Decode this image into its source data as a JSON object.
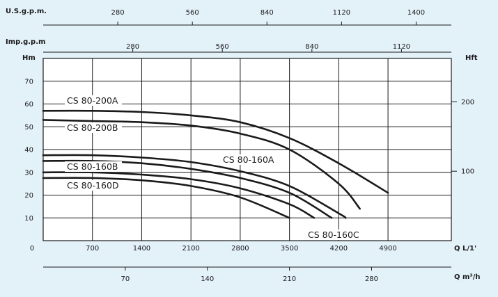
{
  "chart_data": {
    "type": "line",
    "title": "",
    "grid": true,
    "x_primary": {
      "unit": "Q L/1'",
      "ticks": [
        0,
        700,
        1400,
        2100,
        2800,
        3500,
        4200,
        4900
      ],
      "range": [
        0,
        5800
      ]
    },
    "x_secondary_axes": [
      {
        "unit": "U.S.g.p.m.",
        "ticks": [
          "280",
          "560",
          "840",
          "1120",
          "1400"
        ]
      },
      {
        "unit": "Imp.g.p.m",
        "ticks": [
          "280",
          "560",
          "840",
          "1120"
        ]
      },
      {
        "unit": "Q m³/h",
        "ticks": [
          "70",
          "140",
          "210",
          "280"
        ]
      }
    ],
    "y_primary": {
      "unit": "Hm",
      "ticks": [
        0,
        10,
        20,
        30,
        40,
        50,
        60,
        70
      ],
      "range": [
        0,
        80
      ]
    },
    "y_secondary": {
      "unit": "Hft",
      "ticks": [
        "100",
        "200"
      ]
    },
    "series": [
      {
        "name": "CS 80-200A",
        "x": [
          0,
          700,
          1400,
          2100,
          2800,
          3500,
          4200,
          4900
        ],
        "y": [
          57,
          57,
          56.5,
          55,
          52,
          45,
          34,
          21
        ]
      },
      {
        "name": "CS 80-200B",
        "x": [
          0,
          700,
          1400,
          2100,
          2800,
          3500,
          4200,
          4500
        ],
        "y": [
          53,
          52.5,
          52,
          50.5,
          47,
          40,
          25,
          14
        ]
      },
      {
        "name": "CS 80-160A",
        "x": [
          0,
          700,
          1400,
          2100,
          2800,
          3500,
          4200,
          4300
        ],
        "y": [
          37.5,
          37.5,
          36.5,
          34.5,
          30.5,
          24,
          12,
          10
        ]
      },
      {
        "name": "CS 80-160B",
        "x": [
          0,
          700,
          1400,
          2100,
          2800,
          3500,
          4100
        ],
        "y": [
          35,
          35,
          34,
          31.5,
          27.5,
          21,
          10
        ]
      },
      {
        "name": "CS 80-160C",
        "x": [
          0,
          700,
          1400,
          2100,
          2800,
          3500,
          3850
        ],
        "y": [
          30,
          30,
          29,
          27,
          23,
          16,
          10
        ]
      },
      {
        "name": "CS 80-160D",
        "x": [
          0,
          700,
          1400,
          2100,
          2800,
          3500
        ],
        "y": [
          27.5,
          27.5,
          26.5,
          24,
          19,
          10
        ]
      }
    ]
  }
}
